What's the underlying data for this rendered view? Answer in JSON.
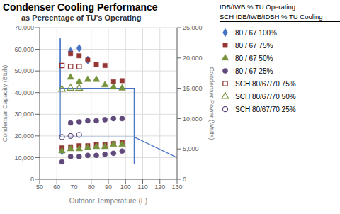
{
  "chart_data": {
    "type": "scatter",
    "title": "Condenser Cooling Performance",
    "subtitle": "as Percentage of TU's Operating",
    "x_label": "Outdoor Temperature (F)",
    "y_label": "Condenser Capacity (Btuh)",
    "y2_label": "Condenser Power (Watts)",
    "xlim": [
      50,
      130
    ],
    "xticks": [
      50,
      60,
      70,
      80,
      90,
      100,
      110,
      120,
      130
    ],
    "ylim": [
      0,
      70000
    ],
    "yticks": [
      0,
      {
        "value": 10000,
        "label": "10,000"
      },
      {
        "value": 20000,
        "label": "20,000"
      },
      {
        "value": 30000,
        "label": "30,000"
      },
      {
        "value": 40000,
        "label": "40,000"
      },
      {
        "value": 50000,
        "label": "50,000"
      },
      {
        "value": 60000,
        "label": "60,000"
      },
      {
        "value": 70000,
        "label": "70,000"
      }
    ],
    "y2lim": [
      0,
      25000
    ],
    "y2ticks": [
      0,
      {
        "value": 5000,
        "label": "5,000"
      },
      {
        "value": 10000,
        "label": "10,000"
      },
      {
        "value": 15000,
        "label": "15,000"
      },
      {
        "value": 20000,
        "label": "20,000"
      },
      {
        "value": 25000,
        "label": "25,000"
      }
    ],
    "grid": true,
    "legend": "right",
    "annotations": [
      "IDB/IWB % TU Operating",
      "SCH IDB/IWB/IDBH % TU Cooling"
    ],
    "series": [
      {
        "name": "80 / 67 100%",
        "color": "#4472C4",
        "marker": "diamond",
        "x": [
          68,
          73,
          78
        ],
        "values": [
          59000,
          60500,
          55000
        ]
      },
      {
        "name": "80 / 67 75%",
        "color": "#943634",
        "marker": "square",
        "x": [
          68,
          73,
          78,
          83,
          88,
          93,
          98
        ],
        "values": [
          58000,
          57000,
          55000,
          53000,
          52500,
          45000,
          45500
        ]
      },
      {
        "name": "80 / 67 50%",
        "color": "#76933C",
        "marker": "triangle",
        "x": [
          68,
          73,
          78,
          83,
          88,
          93,
          98
        ],
        "values": [
          47000,
          45000,
          46000,
          46000,
          43500,
          42500,
          42000
        ]
      },
      {
        "name": "80 / 67 25%",
        "color": "#604A7B",
        "marker": "circle",
        "x": [
          68,
          73,
          78,
          83,
          88,
          93,
          98
        ],
        "values": [
          26000,
          26500,
          27000,
          27000,
          27500,
          28000,
          28000
        ]
      },
      {
        "name": "SCH 80/67/70 75%",
        "color": "#943634",
        "marker": "square-open",
        "x": [
          63,
          68,
          73
        ],
        "values": [
          52500,
          52000,
          52000
        ]
      },
      {
        "name": "SCH 80/67/70 50%",
        "color": "#76933C",
        "marker": "triangle-open",
        "x": [
          63,
          68,
          73
        ],
        "values": [
          41500,
          42000,
          42000
        ]
      },
      {
        "name": "SCH 80/67/70 25%",
        "color": "#604A7B",
        "marker": "circle-open",
        "x": [
          63,
          68,
          73
        ],
        "values": [
          19500,
          20000,
          20500
        ]
      },
      {
        "name": "80 / 67 100%",
        "color": "#4472C4",
        "marker": "diamond",
        "x": [
          63
        ],
        "values": [
          13000
        ]
      },
      {
        "name": "80 / 67 75%",
        "color": "#943634",
        "marker": "square",
        "x": [
          63,
          68,
          73,
          78,
          83,
          88,
          93,
          98
        ],
        "values": [
          14500,
          15000,
          15500,
          15500,
          16000,
          16000,
          16500,
          17000
        ]
      },
      {
        "name": "80 / 67 50%",
        "color": "#76933C",
        "marker": "triangle",
        "x": [
          63,
          68,
          73,
          78,
          83,
          88,
          93,
          98
        ],
        "values": [
          13000,
          14000,
          14000,
          14500,
          15000,
          15000,
          16000,
          16000
        ]
      },
      {
        "name": "80 / 67 25%",
        "color": "#604A7B",
        "marker": "circle",
        "x": [
          63,
          68,
          73,
          78,
          83,
          88,
          93,
          98
        ],
        "values": [
          8000,
          10500,
          10500,
          11000,
          11000,
          11500,
          12000,
          13000
        ]
      },
      {
        "type": "line",
        "color": "#4472C4",
        "x": [
          62,
          62,
          105,
          105,
          130
        ],
        "values": [
          65000,
          42000,
          42000,
          19500,
          10000
        ]
      },
      {
        "type": "line",
        "color": "#4472C4",
        "x": [
          62,
          62,
          105,
          105
        ],
        "values": [
          65000,
          19500,
          19500,
          7000
        ]
      }
    ]
  }
}
